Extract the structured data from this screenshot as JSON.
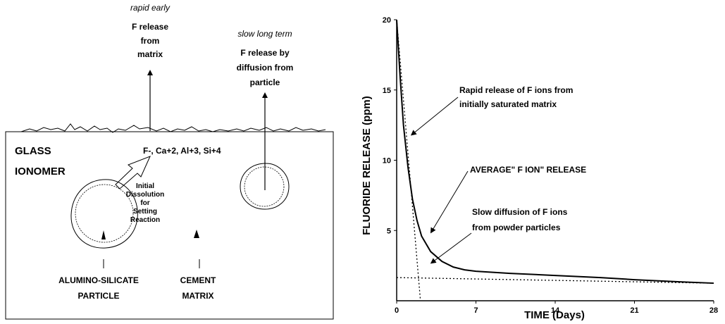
{
  "left_panel": {
    "top_arrow_label": {
      "italic": "rapid early",
      "lines": [
        "F release",
        "from",
        "matrix"
      ]
    },
    "right_arrow_label": {
      "italic": "slow long term",
      "lines": [
        "F release by",
        "diffusion from",
        "particle"
      ]
    },
    "box_title": [
      "GLASS",
      "IONOMER"
    ],
    "ions": "F-, Ca+2, Al+3, Si+4",
    "dissolution": [
      "Initial",
      "Dissolution",
      "for",
      "Setting",
      "Reaction"
    ],
    "particle_label": [
      "ALUMINO-SILICATE",
      "PARTICLE"
    ],
    "matrix_label": [
      "CEMENT",
      "MATRIX"
    ]
  },
  "chart_data": {
    "type": "line",
    "xlabel": "TIME (Days)",
    "ylabel": "FLUORIDE RELEASE (ppm)",
    "x_ticks": [
      "0",
      "7",
      "14",
      "21",
      "28"
    ],
    "y_ticks": [
      "5",
      "10",
      "15",
      "20"
    ],
    "xlim": [
      0,
      28
    ],
    "ylim": [
      0,
      20
    ],
    "series": [
      {
        "style": "solid",
        "x": [
          0,
          0.3,
          0.6,
          1.0,
          1.4,
          1.8,
          2.2,
          3,
          4,
          5,
          6,
          7,
          10,
          14,
          18,
          21,
          25,
          28
        ],
        "y": [
          20,
          16,
          12.5,
          9.5,
          7.2,
          5.7,
          4.6,
          3.5,
          2.8,
          2.4,
          2.2,
          2.1,
          1.95,
          1.8,
          1.65,
          1.5,
          1.35,
          1.25
        ]
      },
      {
        "style": "dotted",
        "x": [
          0,
          2.1
        ],
        "y": [
          20,
          0
        ]
      },
      {
        "style": "dotted",
        "x": [
          0,
          28
        ],
        "y": [
          1.65,
          1.25
        ]
      }
    ],
    "annotations": {
      "rapid": [
        "Rapid release of F ions from",
        "initially saturated matrix"
      ],
      "average": "AVERAGE\" F ION\" RELEASE",
      "slow": [
        "Slow diffusion of F ions",
        "from powder particles"
      ]
    }
  }
}
